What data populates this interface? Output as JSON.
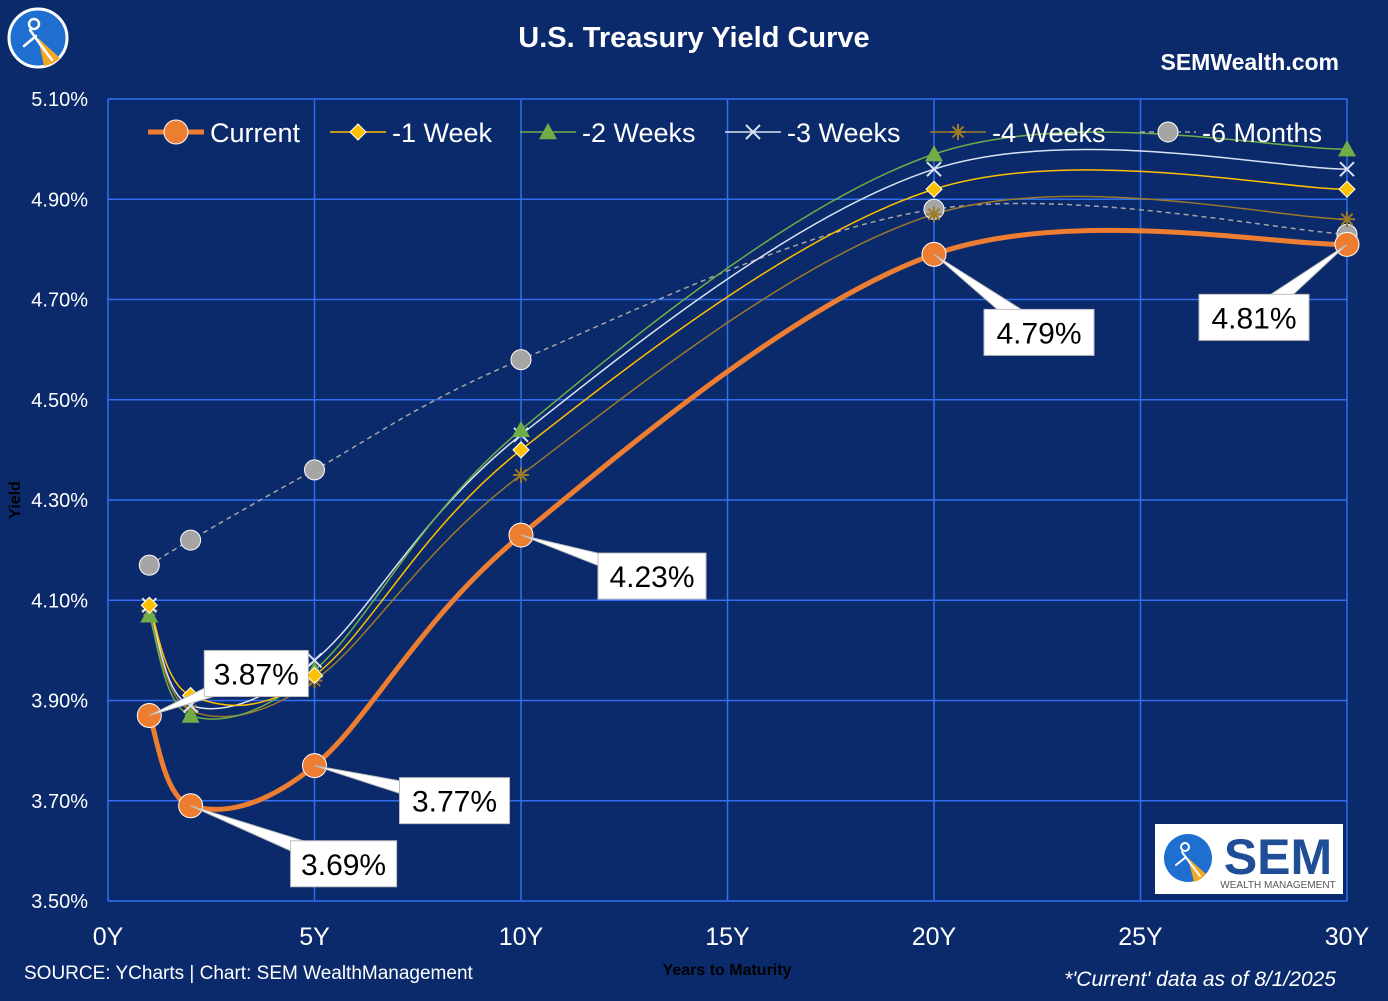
{
  "header": {
    "title": "U.S. Treasury Yield Curve",
    "site": "SEMWealth.com"
  },
  "footer": {
    "source": "SOURCE: YCharts | Chart: SEM WealthManagement",
    "note": "*'Current' data as of 8/1/2025"
  },
  "logo": {
    "text": "SEM",
    "subtext": "WEALTH MANAGEMENT"
  },
  "colors": {
    "background": "#0b2a6b",
    "grid": "#2f6ff0",
    "current": "#ed7d31",
    "week1": "#ffc000",
    "week2": "#70ad47",
    "week3": "#dae3f3",
    "week4": "#9c7a2a",
    "month6": "#a5a5a5"
  },
  "chart_data": {
    "type": "line",
    "title": "U.S. Treasury Yield Curve",
    "xlabel": "Years to Maturity",
    "ylabel": "Yield",
    "xlim": [
      0,
      30
    ],
    "ylim": [
      3.5,
      5.1
    ],
    "x_ticks": [
      0,
      5,
      10,
      15,
      20,
      25,
      30
    ],
    "x_tick_labels": [
      "0Y",
      "5Y",
      "10Y",
      "15Y",
      "20Y",
      "25Y",
      "30Y"
    ],
    "y_ticks": [
      3.5,
      3.7,
      3.9,
      4.1,
      4.3,
      4.5,
      4.7,
      4.9,
      5.1
    ],
    "y_tick_labels": [
      "3.50%",
      "3.70%",
      "3.90%",
      "4.10%",
      "4.30%",
      "4.50%",
      "4.70%",
      "4.90%",
      "5.10%"
    ],
    "grid": true,
    "legend_position": "top",
    "x": [
      1,
      2,
      5,
      10,
      20,
      30
    ],
    "series": [
      {
        "name": "Current",
        "values": [
          3.87,
          3.69,
          3.77,
          4.23,
          4.79,
          4.81
        ],
        "color": "#ed7d31",
        "marker": "circle"
      },
      {
        "name": "-1 Week",
        "values": [
          4.09,
          3.91,
          3.95,
          4.4,
          4.92,
          4.92
        ],
        "color": "#ffc000",
        "marker": "diamond"
      },
      {
        "name": "-2 Weeks",
        "values": [
          4.07,
          3.87,
          3.96,
          4.44,
          4.99,
          5.0
        ],
        "color": "#70ad47",
        "marker": "triangle"
      },
      {
        "name": "-3 Weeks",
        "values": [
          4.09,
          3.89,
          3.98,
          4.43,
          4.96,
          4.96
        ],
        "color": "#dae3f3",
        "marker": "x"
      },
      {
        "name": "-4 Weeks",
        "values": [
          4.08,
          3.88,
          3.94,
          4.35,
          4.87,
          4.86
        ],
        "color": "#9c7a2a",
        "marker": "star"
      },
      {
        "name": "-6 Months",
        "values": [
          4.17,
          4.22,
          4.36,
          4.58,
          4.88,
          4.83
        ],
        "color": "#a5a5a5",
        "marker": "circle-gray"
      }
    ],
    "data_labels": [
      "3.87%",
      "3.69%",
      "3.77%",
      "4.23%",
      "4.79%",
      "4.81%"
    ]
  }
}
